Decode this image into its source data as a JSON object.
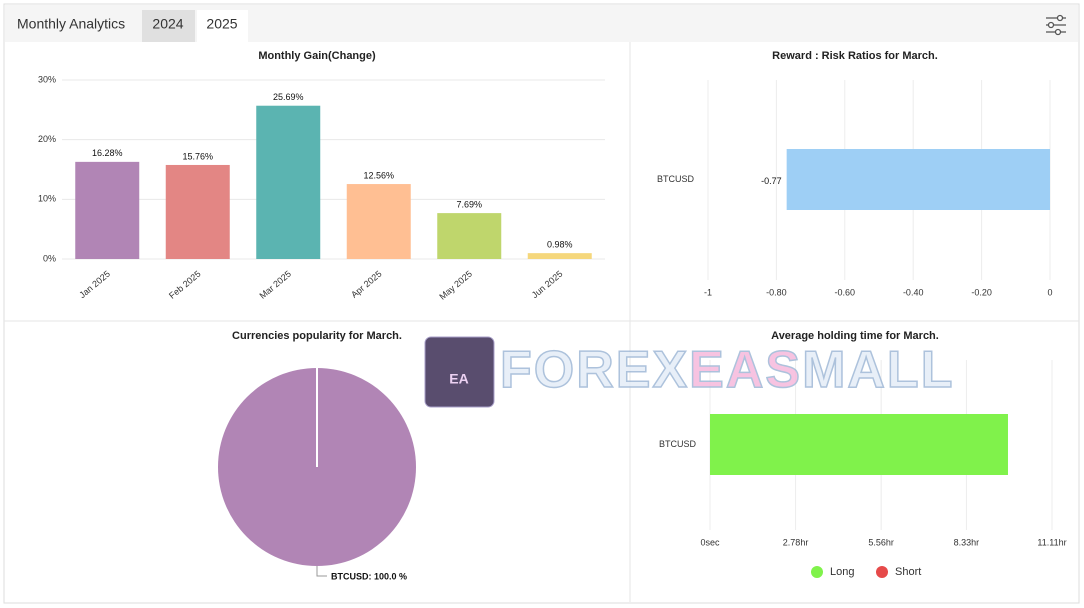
{
  "header": {
    "title": "Monthly Analytics",
    "tabs": [
      "2024",
      "2025"
    ]
  },
  "watermark": {
    "logo_text": "EA",
    "parts": [
      "FOREX",
      "EAS",
      "MALL"
    ]
  },
  "chart_data": [
    {
      "type": "bar",
      "title": "Monthly Gain(Change)",
      "categories": [
        "Jan 2025",
        "Feb 2025",
        "Mar 2025",
        "Apr 2025",
        "May 2025",
        "Jun 2025"
      ],
      "values": [
        16.28,
        15.76,
        25.69,
        12.56,
        7.69,
        0.98
      ],
      "value_labels": [
        "16.28%",
        "15.76%",
        "25.69%",
        "12.56%",
        "7.69%",
        "0.98%"
      ],
      "colors": [
        "#b185b5",
        "#e38684",
        "#5bb4b1",
        "#ffbf93",
        "#bfd66c",
        "#f5d77c"
      ],
      "ylim": [
        0,
        30
      ],
      "yticks": [
        {
          "value": 0,
          "label": "0%"
        },
        {
          "value": 10,
          "label": "10%"
        },
        {
          "value": 20,
          "label": "20%"
        },
        {
          "value": 30,
          "label": "30%"
        }
      ],
      "grid": true
    },
    {
      "type": "hbar",
      "title": "Reward : Risk Ratios for March.",
      "categories": [
        "BTCUSD"
      ],
      "series": [
        {
          "color": "#9ecff5",
          "values": [
            -0.77
          ]
        }
      ],
      "xlim": [
        -1,
        0
      ],
      "xticks": [
        -1,
        {
          "value": -0.8,
          "label": "-0.80"
        },
        {
          "value": -0.6,
          "label": "-0.60"
        },
        {
          "value": -0.4,
          "label": "-0.40"
        },
        {
          "value": -0.2,
          "label": "-0.20"
        },
        0
      ],
      "grid": true,
      "data_labels": true
    },
    {
      "type": "pie",
      "title": "Currencies popularity for March.",
      "categories": [
        "BTCUSD"
      ],
      "values": [
        100
      ],
      "value_labels": [
        "BTCUSD: 100.0 %"
      ],
      "colors": [
        "#b185b5"
      ]
    },
    {
      "type": "hbar",
      "title": "Average holding time for March.",
      "categories": [
        "BTCUSD"
      ],
      "series": [
        {
          "name": "Long",
          "color": "#80f24b",
          "values": [
            9.68
          ]
        },
        {
          "name": "Short",
          "color": "#e64a4a",
          "values": [
            0
          ]
        }
      ],
      "xlim": [
        0,
        11.11
      ],
      "xticks": [
        {
          "value": 0,
          "label": "0sec"
        },
        {
          "value": 2.78,
          "label": "2.78hr"
        },
        {
          "value": 5.56,
          "label": "5.56hr"
        },
        {
          "value": 8.33,
          "label": "8.33hr"
        },
        {
          "value": 11.11,
          "label": "11.11hr"
        }
      ],
      "grid": true,
      "legend": "bottom"
    }
  ]
}
